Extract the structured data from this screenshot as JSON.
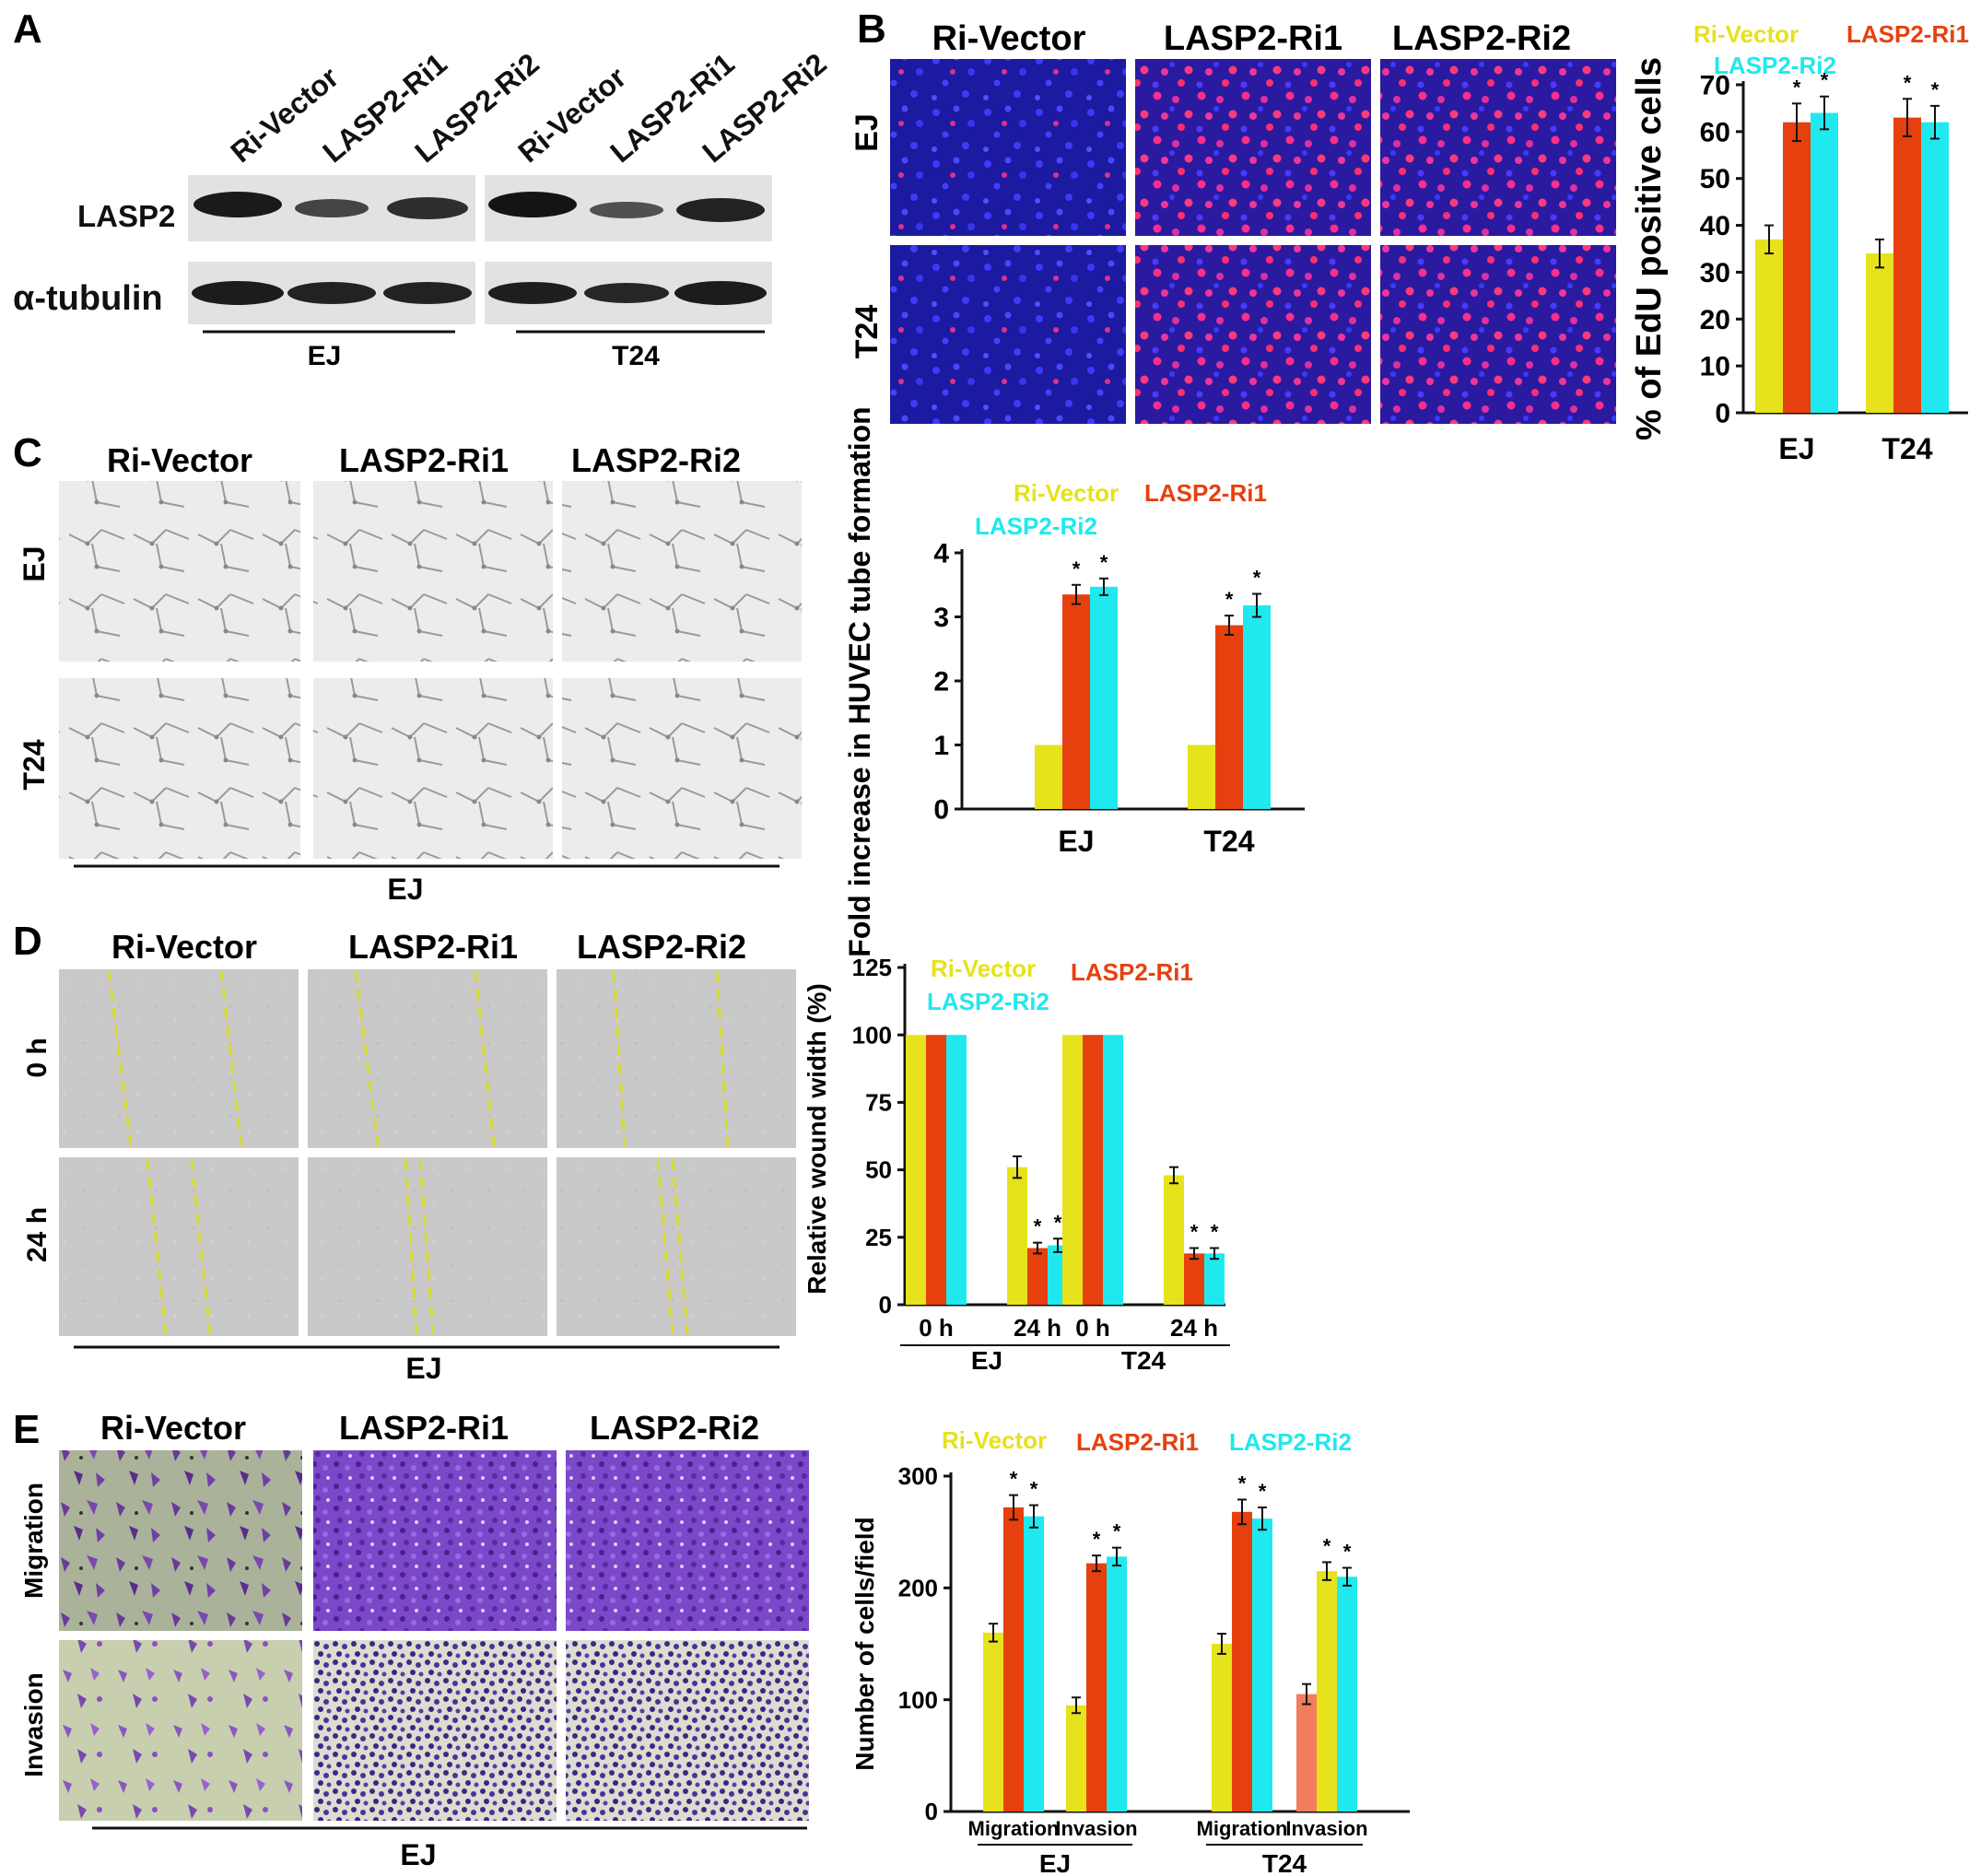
{
  "colors": {
    "ri_vector": "#e6e21b",
    "lasp2_ri1": "#e6400f",
    "lasp2_ri2": "#1fe9ee",
    "invasion_alt": "#f27c5e"
  },
  "panels": {
    "A": {
      "letter": "A",
      "lanes": [
        "Ri-Vector",
        "LASP2-Ri1",
        "LASP2-Ri2",
        "Ri-Vector",
        "LASP2-Ri1",
        "LASP2-Ri2"
      ],
      "rows": [
        "LASP2",
        "α-tubulin"
      ],
      "groups": [
        "EJ",
        "T24"
      ]
    },
    "B": {
      "letter": "B",
      "columns": [
        "Ri-Vector",
        "LASP2-Ri1",
        "LASP2-Ri2"
      ],
      "rows": [
        "EJ",
        "T24"
      ]
    },
    "C": {
      "letter": "C",
      "columns": [
        "Ri-Vector",
        "LASP2-Ri1",
        "LASP2-Ri2"
      ],
      "rows": [
        "EJ",
        "T24"
      ],
      "bottom_label": "EJ"
    },
    "D": {
      "letter": "D",
      "columns": [
        "Ri-Vector",
        "LASP2-Ri1",
        "LASP2-Ri2"
      ],
      "rows": [
        "0 h",
        "24 h"
      ],
      "bottom_label": "EJ"
    },
    "E": {
      "letter": "E",
      "columns": [
        "Ri-Vector",
        "LASP2-Ri1",
        "LASP2-Ri2"
      ],
      "rows": [
        "Migration",
        "Invasion"
      ],
      "bottom_label": "EJ"
    }
  },
  "chart_data": [
    {
      "id": "B",
      "type": "bar",
      "ylabel": "% of EdU positive cells",
      "ylim": [
        0,
        70
      ],
      "yticks": [
        0,
        10,
        20,
        30,
        40,
        50,
        60,
        70
      ],
      "categories": [
        "EJ",
        "T24"
      ],
      "legend": [
        "Ri-Vector",
        "LASP2-Ri1",
        "LASP2-Ri2"
      ],
      "legend_placement": "top",
      "series": [
        {
          "name": "Ri-Vector",
          "values": [
            37,
            34
          ],
          "errors": [
            3,
            3
          ],
          "sig": [
            "",
            ""
          ]
        },
        {
          "name": "LASP2-Ri1",
          "values": [
            62,
            63
          ],
          "errors": [
            4,
            4
          ],
          "sig": [
            "*",
            "*"
          ]
        },
        {
          "name": "LASP2-Ri2",
          "values": [
            64,
            62
          ],
          "errors": [
            3.5,
            3.5
          ],
          "sig": [
            "*",
            "*"
          ]
        }
      ]
    },
    {
      "id": "C",
      "type": "bar",
      "ylabel": "Fold increase in HUVEC tube formation",
      "ylim": [
        0,
        4
      ],
      "yticks": [
        0,
        1,
        2,
        3,
        4
      ],
      "categories": [
        "EJ",
        "T24"
      ],
      "legend": [
        "Ri-Vector",
        "LASP2-Ri1",
        "LASP2-Ri2"
      ],
      "legend_placement": "top",
      "series": [
        {
          "name": "Ri-Vector",
          "values": [
            1,
            1
          ],
          "errors": [
            0,
            0
          ],
          "sig": [
            "",
            ""
          ]
        },
        {
          "name": "LASP2-Ri1",
          "values": [
            3.35,
            2.87
          ],
          "errors": [
            0.15,
            0.15
          ],
          "sig": [
            "*",
            "*"
          ]
        },
        {
          "name": "LASP2-Ri2",
          "values": [
            3.47,
            3.18
          ],
          "errors": [
            0.13,
            0.18
          ],
          "sig": [
            "*",
            "*"
          ]
        }
      ]
    },
    {
      "id": "D",
      "type": "bar",
      "ylabel": "Relative wound width (%)",
      "ylim": [
        0,
        125
      ],
      "yticks": [
        0,
        25,
        50,
        75,
        100,
        125
      ],
      "categories": [
        "0 h",
        "24 h",
        "0 h",
        "24 h"
      ],
      "group_labels": [
        "EJ",
        "T24"
      ],
      "legend": [
        "Ri-Vector",
        "LASP2-Ri1",
        "LASP2-Ri2"
      ],
      "legend_placement": "top",
      "series": [
        {
          "name": "Ri-Vector",
          "values": [
            100,
            51,
            100,
            48
          ],
          "errors": [
            0,
            4,
            0,
            3
          ],
          "sig": [
            "",
            "",
            "",
            ""
          ]
        },
        {
          "name": "LASP2-Ri1",
          "values": [
            100,
            21,
            100,
            19
          ],
          "errors": [
            0,
            2,
            0,
            2
          ],
          "sig": [
            "",
            "*",
            "",
            "*"
          ]
        },
        {
          "name": "LASP2-Ri2",
          "values": [
            100,
            22,
            100,
            19
          ],
          "errors": [
            0,
            2.5,
            0,
            2
          ],
          "sig": [
            "",
            "*",
            "",
            "*"
          ]
        }
      ]
    },
    {
      "id": "E",
      "type": "bar",
      "ylabel": "Number of cells/field",
      "ylim": [
        0,
        300
      ],
      "yticks": [
        0,
        100,
        200,
        300
      ],
      "categories": [
        "Migration",
        "Invasion",
        "Migration",
        "Invasion"
      ],
      "group_labels": [
        "EJ",
        "T24"
      ],
      "legend": [
        "Ri-Vector",
        "LASP2-Ri1",
        "LASP2-Ri2"
      ],
      "legend_placement": "top",
      "series": [
        {
          "name": "Ri-Vector",
          "values": [
            160,
            95,
            150,
            105
          ],
          "errors": [
            8,
            7,
            9,
            9
          ],
          "sig": [
            "",
            "",
            "",
            ""
          ]
        },
        {
          "name": "LASP2-Ri1",
          "values": [
            272,
            222,
            268,
            215
          ],
          "errors": [
            11,
            7,
            11,
            8
          ],
          "sig": [
            "*",
            "*",
            "*",
            "*"
          ]
        },
        {
          "name": "LASP2-Ri2",
          "values": [
            264,
            228,
            262,
            210
          ],
          "errors": [
            10,
            8,
            10,
            8
          ],
          "sig": [
            "*",
            "*",
            "*",
            "*"
          ]
        }
      ]
    }
  ]
}
